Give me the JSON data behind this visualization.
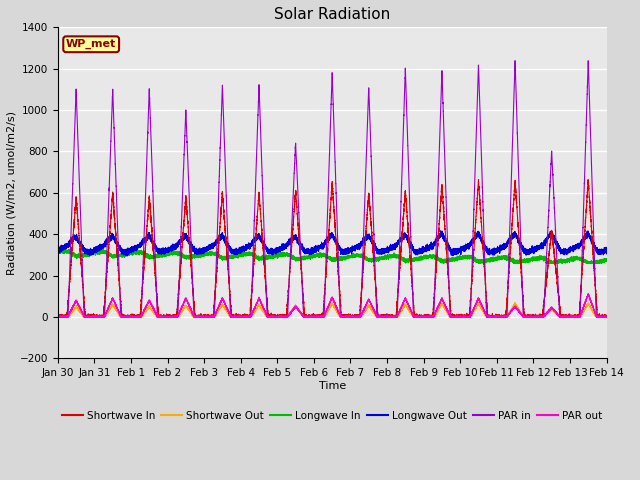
{
  "title": "Solar Radiation",
  "xlabel": "Time",
  "ylabel": "Radiation (W/m2, umol/m2/s)",
  "xlim_start": 0,
  "xlim_end": 15,
  "ylim": [
    -200,
    1400
  ],
  "yticks": [
    -200,
    0,
    200,
    400,
    600,
    800,
    1000,
    1200,
    1400
  ],
  "xtick_labels": [
    "Jan 30",
    "Jan 31",
    "Feb 1",
    "Feb 2",
    "Feb 3",
    "Feb 4",
    "Feb 5",
    "Feb 6",
    "Feb 7",
    "Feb 8",
    "Feb 9",
    "Feb 10",
    "Feb 11",
    "Feb 12",
    "Feb 13",
    "Feb 14"
  ],
  "xtick_positions": [
    0,
    1,
    2,
    3,
    4,
    5,
    6,
    7,
    8,
    9,
    10,
    11,
    12,
    13,
    14,
    15
  ],
  "colors": {
    "shortwave_in": "#dd0000",
    "shortwave_out": "#ffaa00",
    "longwave_in": "#00bb00",
    "longwave_out": "#0000dd",
    "par_in": "#9900cc",
    "par_out": "#ff00cc"
  },
  "legend_labels": [
    "Shortwave In",
    "Shortwave Out",
    "Longwave In",
    "Longwave Out",
    "PAR in",
    "PAR out"
  ],
  "annotation_text": "WP_met",
  "annotation_color": "#8B0000",
  "annotation_bg": "#FFFF99",
  "background_color": "#e8e8e8",
  "grid_color": "#ffffff",
  "par_peaks": [
    1100,
    1100,
    1100,
    1000,
    1120,
    1120,
    840,
    1180,
    1110,
    1200,
    1190,
    1220,
    1240,
    800,
    1240
  ],
  "sw_peaks": [
    580,
    600,
    580,
    580,
    600,
    600,
    610,
    650,
    600,
    610,
    640,
    660,
    660,
    420,
    660
  ],
  "par_out_peaks": [
    80,
    90,
    80,
    90,
    90,
    90,
    50,
    95,
    85,
    90,
    90,
    90,
    50,
    45,
    110
  ],
  "sw_out_peaks": [
    50,
    60,
    50,
    55,
    60,
    60,
    55,
    65,
    55,
    60,
    65,
    65,
    65,
    40,
    65
  ],
  "lw_out_base": 330,
  "lw_in_base": 310,
  "day_start": 0.2,
  "day_end": 0.8,
  "figsize": [
    6.4,
    4.8
  ],
  "dpi": 100
}
